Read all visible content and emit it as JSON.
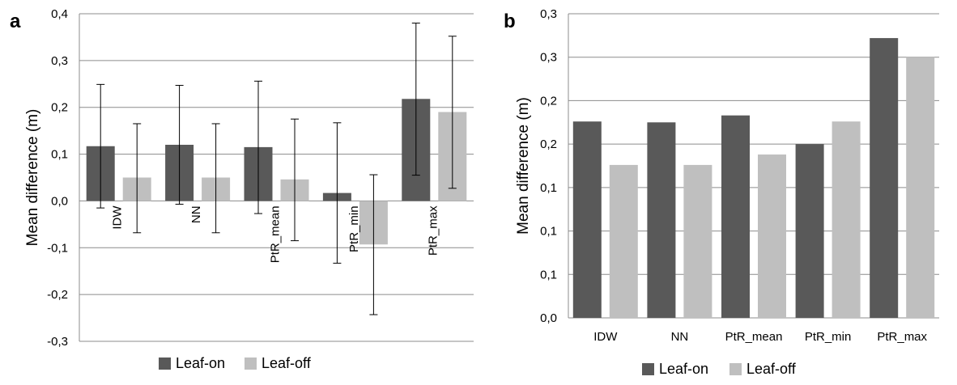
{
  "colors": {
    "leaf_on": "#595959",
    "leaf_off": "#bfbfbf",
    "grid": "#8c8c8c",
    "errorbar": "#000000"
  },
  "chart_data": [
    {
      "panel_label": "a",
      "type": "bar",
      "categories": [
        "IDW",
        "NN",
        "PtR_mean",
        "PtR_min",
        "PtR_max"
      ],
      "series": [
        {
          "name": "Leaf-on",
          "values": [
            0.117,
            0.12,
            0.115,
            0.017,
            0.218
          ],
          "err_low": [
            -0.015,
            -0.007,
            -0.027,
            -0.133,
            0.055
          ],
          "err_high": [
            0.249,
            0.247,
            0.256,
            0.167,
            0.38
          ]
        },
        {
          "name": "Leaf-off",
          "values": [
            0.05,
            0.05,
            0.046,
            -0.093,
            0.19
          ],
          "err_low": [
            -0.068,
            -0.068,
            -0.085,
            -0.243,
            0.027
          ],
          "err_high": [
            0.165,
            0.165,
            0.175,
            0.056,
            0.352
          ]
        }
      ],
      "ylabel": "Mean difference (m)",
      "xlabel": "",
      "ylim": [
        -0.3,
        0.4
      ],
      "yticks": [
        0.4,
        0.3,
        0.2,
        0.1,
        0.0,
        -0.1,
        -0.2,
        -0.3
      ],
      "ytick_labels": [
        "0,4",
        "0,3",
        "0,2",
        "0,1",
        "0,0",
        "-0,1",
        "-0,2",
        "-0,3"
      ],
      "category_label_position": "at zero line, rotated vertical",
      "grid": true,
      "legend_position": "bottom",
      "legend": [
        "Leaf-on",
        "Leaf-off"
      ]
    },
    {
      "panel_label": "b",
      "type": "bar",
      "categories": [
        "IDW",
        "NN",
        "PtR_mean",
        "PtR_min",
        "PtR_max"
      ],
      "series": [
        {
          "name": "Leaf-on",
          "values": [
            0.226,
            0.225,
            0.233,
            0.2,
            0.322
          ]
        },
        {
          "name": "Leaf-off",
          "values": [
            0.176,
            0.176,
            0.188,
            0.226,
            0.3
          ]
        }
      ],
      "ylabel": "Mean difference (m)",
      "xlabel": "",
      "ylim": [
        0.0,
        0.35
      ],
      "yticks": [
        0.35,
        0.3,
        0.25,
        0.2,
        0.15,
        0.1,
        0.05,
        0.0
      ],
      "ytick_labels": [
        "0,3",
        "0,3",
        "0,2",
        "0,2",
        "0,1",
        "0,1",
        "0,1",
        "0,0"
      ],
      "category_label_position": "below axis, horizontal",
      "grid": true,
      "legend_position": "bottom",
      "legend": [
        "Leaf-on",
        "Leaf-off"
      ]
    }
  ]
}
